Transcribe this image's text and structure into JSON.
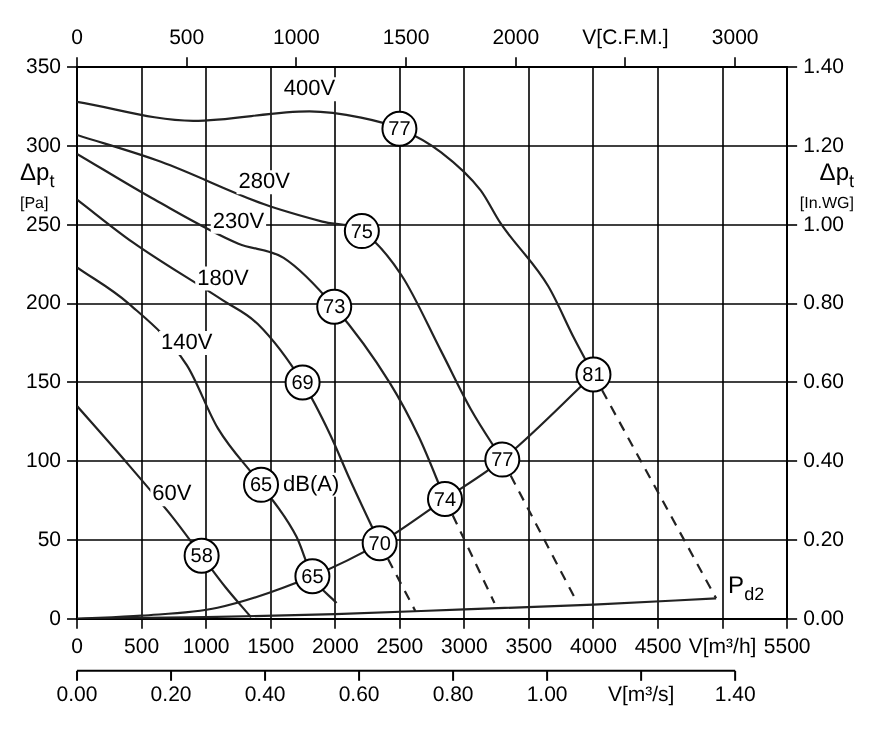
{
  "chart_data": {
    "type": "line",
    "grid": true,
    "xlim": [
      0,
      5500
    ],
    "xticks": [
      0,
      500,
      1000,
      1500,
      2000,
      2500,
      3000,
      3500,
      4000,
      4500,
      {
        "value": 5000,
        "label": "V[m³/h]"
      },
      5500
    ],
    "ylim": [
      0,
      350
    ],
    "yticks": [
      0,
      50,
      100,
      150,
      200,
      250,
      300,
      350
    ],
    "x2lim": [
      0,
      3237
    ],
    "x2ticks": [
      0,
      500,
      1000,
      1500,
      2000,
      {
        "value": 2500,
        "label": "V[C.F.M.]"
      },
      3000
    ],
    "y2lim": [
      0,
      1.4
    ],
    "y2ticks": [
      {
        "value": 0,
        "label": "0.00"
      },
      {
        "value": 0.2,
        "label": "0.20"
      },
      {
        "value": 0.4,
        "label": "0.40"
      },
      {
        "value": 0.6,
        "label": "0.60"
      },
      {
        "value": 0.8,
        "label": "0.80"
      },
      {
        "value": 1,
        "label": "1.00"
      },
      {
        "value": 1.2,
        "label": "1.20"
      },
      {
        "value": 1.4,
        "label": "1.40"
      }
    ],
    "ylabel": "Δp$_{t}$ [Pa]",
    "y2label": "Δp$_{t}$ [In.WG]",
    "series": [
      {
        "name": "400V",
        "color": "#222222",
        "x": [
          0,
          900,
          1800,
          2200,
          2500,
          2820,
          3125,
          3280,
          3650,
          3850,
          4000
        ],
        "values": [
          328,
          316,
          322,
          318,
          311,
          296,
          272,
          251,
          211,
          178,
          155
        ]
      },
      {
        "color": "#222222",
        "line_style": "dashed",
        "x": [
          4000,
          4950
        ],
        "values": [
          155,
          13
        ]
      },
      {
        "name": "280V",
        "color": "#222222",
        "x": [
          0,
          650,
          1450,
          1900,
          2206,
          2513,
          2819,
          3050,
          3294
        ],
        "values": [
          307,
          290,
          263,
          252,
          246,
          218,
          170,
          133,
          101
        ]
      },
      {
        "color": "#222222",
        "line_style": "dashed",
        "x": [
          3294,
          3876
        ],
        "values": [
          101,
          10
        ]
      },
      {
        "name": "230V",
        "color": "#222222",
        "x": [
          0,
          600,
          1250,
          1600,
          1992,
          2420,
          2650,
          2850
        ],
        "values": [
          295,
          266,
          238,
          229,
          198,
          150,
          115,
          76
        ]
      },
      {
        "color": "#222222",
        "line_style": "dashed",
        "x": [
          2850,
          3233
        ],
        "values": [
          76,
          10
        ]
      },
      {
        "name": "180V",
        "color": "#222222",
        "x": [
          0,
          430,
          1130,
          1400,
          1747,
          1960,
          2110,
          2344
        ],
        "values": [
          266,
          239,
          202,
          187,
          150,
          117,
          89,
          48
        ]
      },
      {
        "color": "#222222",
        "line_style": "dashed",
        "x": [
          2344,
          2620
        ],
        "values": [
          48,
          5
        ]
      },
      {
        "name": "140V",
        "color": "#222222",
        "x": [
          0,
          400,
          850,
          1090,
          1425,
          1700,
          1823,
          2010
        ],
        "values": [
          223,
          200,
          161,
          121,
          85,
          52,
          27,
          10
        ]
      },
      {
        "name": "60V",
        "color": "#222222",
        "x": [
          0,
          322,
          735,
          965,
          1150,
          1348
        ],
        "values": [
          135,
          105,
          65,
          40,
          20,
          1
        ]
      },
      {
        "color": "#222222",
        "x": [
          0,
          500,
          1088,
          1823,
          2344,
          2850,
          3294,
          4000
        ],
        "values": [
          0,
          2,
          7,
          27,
          48,
          76,
          101,
          155
        ]
      },
      {
        "name": "P$_{d2}$",
        "color": "#222222",
        "x": [
          0,
          1000,
          2000,
          3000,
          4000,
          4950
        ],
        "values": [
          0,
          1,
          3,
          6,
          9,
          13
        ]
      }
    ],
    "annotations": [
      {
        "text": "77",
        "x": 2497,
        "y": 311
      },
      {
        "text": "75",
        "x": 2206,
        "y": 246
      },
      {
        "text": "73",
        "x": 1992,
        "y": 198
      },
      {
        "text": "69",
        "x": 1747,
        "y": 150
      },
      {
        "text": "65",
        "x": 1425,
        "y": 85
      },
      "dB(A)",
      {
        "text": "58",
        "x": 965,
        "y": 40
      },
      {
        "text": "65",
        "x": 1823,
        "y": 27
      },
      {
        "text": "70",
        "x": 2344,
        "y": 48
      },
      {
        "text": "74",
        "x": 2850,
        "y": 76
      },
      {
        "text": "77",
        "x": 3294,
        "y": 101
      },
      {
        "text": "81",
        "x": 4000,
        "y": 155
      },
      "0.00",
      "0.20",
      "0.40",
      "0.60",
      "0.80",
      "1.00",
      "V[m³/s]",
      "1.40"
    ]
  }
}
